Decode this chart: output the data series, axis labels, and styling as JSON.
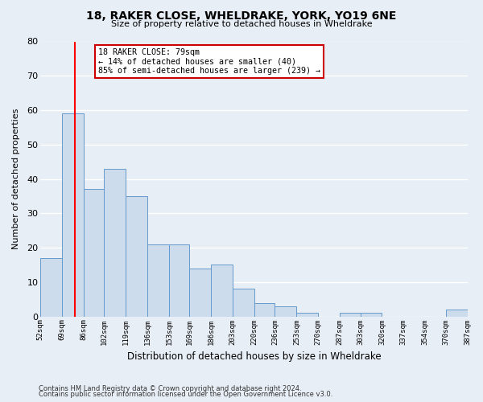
{
  "title": "18, RAKER CLOSE, WHELDRAKE, YORK, YO19 6NE",
  "subtitle": "Size of property relative to detached houses in Wheldrake",
  "bar_color": "#ccdcec",
  "bar_edge_color": "#6699cc",
  "background_color": "#e8eef5",
  "grid_color": "#ffffff",
  "red_line_x": 79,
  "bin_edges": [
    52,
    69,
    86,
    102,
    119,
    136,
    153,
    169,
    186,
    203,
    220,
    236,
    253,
    270,
    287,
    303,
    320,
    337,
    354,
    370,
    387
  ],
  "bar_heights": [
    17,
    59,
    37,
    43,
    35,
    21,
    21,
    14,
    15,
    8,
    4,
    3,
    1,
    0,
    1,
    1,
    0,
    0,
    0,
    2
  ],
  "xlabels": [
    "52sqm",
    "69sqm",
    "86sqm",
    "102sqm",
    "119sqm",
    "136sqm",
    "153sqm",
    "169sqm",
    "186sqm",
    "203sqm",
    "220sqm",
    "236sqm",
    "253sqm",
    "270sqm",
    "287sqm",
    "303sqm",
    "320sqm",
    "337sqm",
    "354sqm",
    "370sqm",
    "387sqm"
  ],
  "ylabel": "Number of detached properties",
  "xlabel": "Distribution of detached houses by size in Wheldrake",
  "ylim": [
    0,
    80
  ],
  "yticks": [
    0,
    10,
    20,
    30,
    40,
    50,
    60,
    70,
    80
  ],
  "annotation_title": "18 RAKER CLOSE: 79sqm",
  "annotation_line1": "← 14% of detached houses are smaller (40)",
  "annotation_line2": "85% of semi-detached houses are larger (239) →",
  "annotation_box_edge_color": "#cc0000",
  "annotation_box_bg": "#ffffff",
  "footer1": "Contains HM Land Registry data © Crown copyright and database right 2024.",
  "footer2": "Contains public sector information licensed under the Open Government Licence v3.0."
}
